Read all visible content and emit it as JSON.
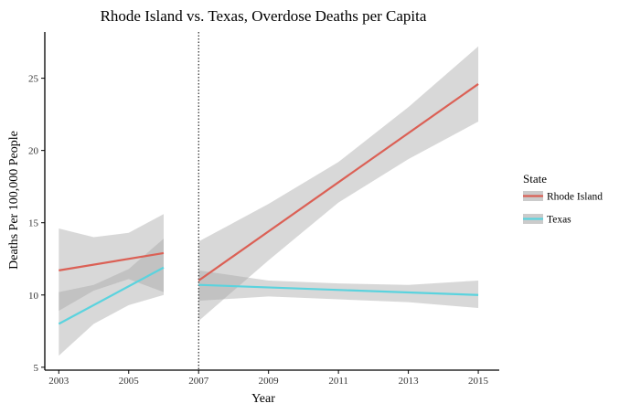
{
  "chart_data": {
    "type": "line",
    "title": "Rhode Island vs. Texas, Overdose Deaths per Capita",
    "xlabel": "Year",
    "ylabel": "Deaths Per 100,000 People",
    "xlim": [
      2002.6,
      2015.6
    ],
    "ylim": [
      4.8,
      28.2
    ],
    "x_ticks": [
      2003,
      2005,
      2007,
      2009,
      2011,
      2013,
      2015
    ],
    "y_ticks": [
      5,
      10,
      15,
      20,
      25
    ],
    "grid": false,
    "vline": {
      "x": 2007,
      "style": "dotted"
    },
    "legend": {
      "title": "State",
      "position": "right"
    },
    "series": [
      {
        "name": "Rhode Island",
        "color": "#DB6055",
        "segments": [
          {
            "x": [
              2003,
              2006
            ],
            "y": [
              11.7,
              12.9
            ],
            "band_x": [
              2003,
              2004,
              2005,
              2006
            ],
            "band_low": [
              8.9,
              10.3,
              11.1,
              10.2
            ],
            "band_high": [
              14.6,
              14.0,
              14.3,
              15.6
            ]
          },
          {
            "x": [
              2007,
              2015
            ],
            "y": [
              11.0,
              24.6
            ],
            "band_x": [
              2007,
              2009,
              2011,
              2013,
              2015
            ],
            "band_low": [
              8.2,
              12.4,
              16.4,
              19.4,
              22.0
            ],
            "band_high": [
              13.7,
              16.3,
              19.2,
              23.0,
              27.2
            ]
          }
        ]
      },
      {
        "name": "Texas",
        "color": "#5BD3DE",
        "segments": [
          {
            "x": [
              2003,
              2006
            ],
            "y": [
              8.0,
              11.9
            ],
            "band_x": [
              2003,
              2004,
              2005,
              2006
            ],
            "band_low": [
              5.8,
              8.0,
              9.3,
              10.0
            ],
            "band_high": [
              10.2,
              10.7,
              11.8,
              13.9
            ]
          },
          {
            "x": [
              2007,
              2015
            ],
            "y": [
              10.7,
              10.0
            ],
            "band_x": [
              2007,
              2009,
              2011,
              2013,
              2015
            ],
            "band_low": [
              9.6,
              9.9,
              9.7,
              9.5,
              9.1
            ],
            "band_high": [
              11.7,
              11.0,
              10.8,
              10.7,
              11.0
            ]
          }
        ]
      }
    ],
    "band_color": "#A8A8A8"
  }
}
